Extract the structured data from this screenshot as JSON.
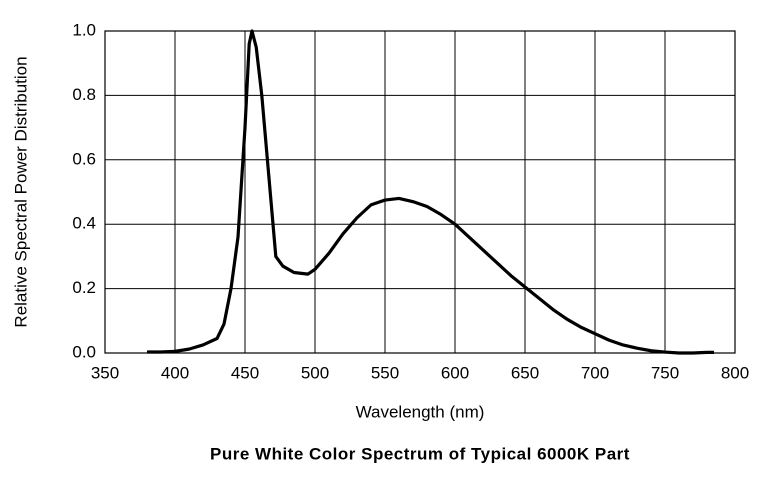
{
  "chart_data": {
    "type": "line",
    "title": "Pure White Color Spectrum of Typical 6000K Part",
    "x_label": "Wavelength (nm)",
    "y_label": "Relative Spectral Power Distribution",
    "x": [
      380,
      390,
      400,
      410,
      420,
      430,
      435,
      440,
      445,
      450,
      453,
      455,
      458,
      462,
      467,
      472,
      477,
      485,
      495,
      500,
      510,
      520,
      530,
      540,
      550,
      560,
      570,
      580,
      590,
      600,
      610,
      620,
      630,
      640,
      650,
      660,
      670,
      680,
      690,
      700,
      710,
      720,
      730,
      740,
      750,
      760,
      770,
      780,
      785
    ],
    "series": [
      {
        "name": "Spectrum",
        "color": "#000000",
        "values": [
          0.003,
          0.003,
          0.005,
          0.012,
          0.025,
          0.045,
          0.09,
          0.2,
          0.36,
          0.7,
          0.96,
          1.0,
          0.95,
          0.8,
          0.55,
          0.3,
          0.27,
          0.25,
          0.245,
          0.26,
          0.31,
          0.37,
          0.42,
          0.46,
          0.475,
          0.48,
          0.47,
          0.455,
          0.43,
          0.4,
          0.36,
          0.32,
          0.28,
          0.24,
          0.205,
          0.17,
          0.135,
          0.105,
          0.08,
          0.06,
          0.04,
          0.025,
          0.015,
          0.007,
          0.003,
          0,
          0,
          0.002,
          0.002
        ]
      }
    ],
    "xlim": [
      350,
      800
    ],
    "xticks": [
      350,
      400,
      450,
      500,
      550,
      600,
      650,
      700,
      750,
      800
    ],
    "ylim": [
      0,
      1
    ],
    "yticks": [
      {
        "value": 0,
        "label": "0.0"
      },
      0.2,
      0.4,
      0.6,
      0.8,
      {
        "value": 1,
        "label": "1.0"
      }
    ],
    "grid": true
  }
}
